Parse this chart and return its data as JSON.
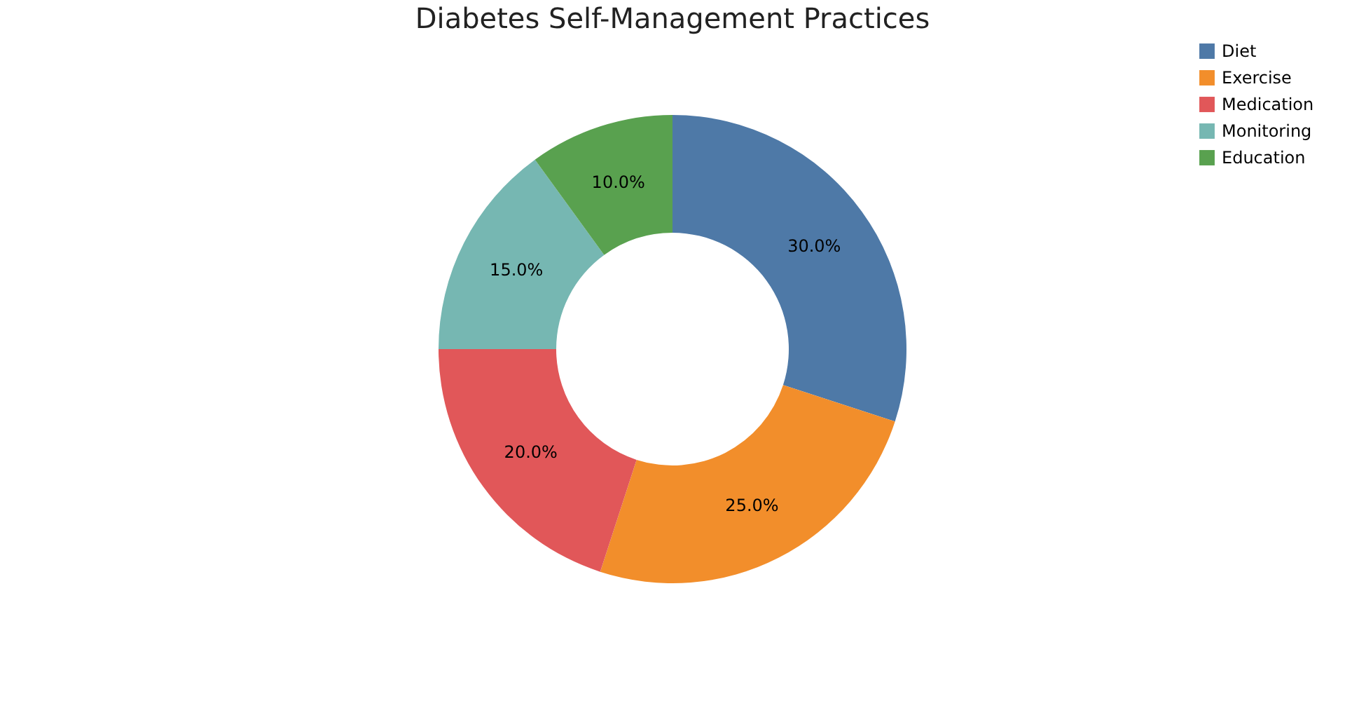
{
  "chart_data": {
    "type": "donut",
    "title": "Diabetes Self-Management Practices",
    "categories": [
      "Diet",
      "Exercise",
      "Medication",
      "Monitoring",
      "Education"
    ],
    "values": [
      30,
      25,
      20,
      15,
      10
    ],
    "colors": [
      "#4e79a7",
      "#f28e2b",
      "#e15759",
      "#76b7b2",
      "#59a14f"
    ],
    "value_labels": [
      "30.0%",
      "25.0%",
      "20.0%",
      "15.0%",
      "10.0%"
    ],
    "legend": "top right"
  }
}
